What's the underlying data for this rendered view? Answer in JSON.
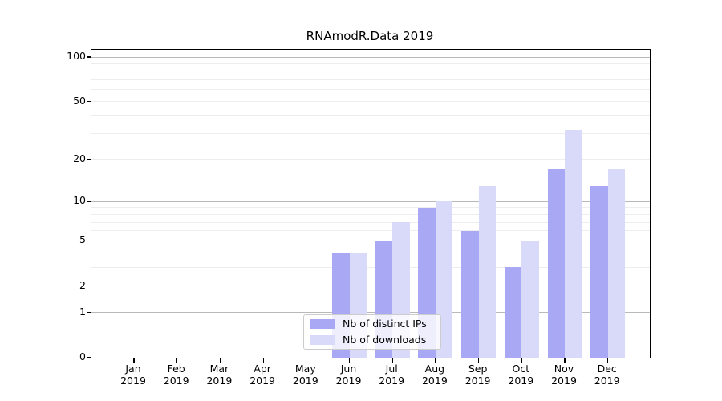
{
  "figure": {
    "title": "RNAmodR.Data 2019"
  },
  "chart_data": {
    "type": "bar",
    "title": "RNAmodR.Data 2019",
    "categories": [
      "Jan",
      "Feb",
      "Mar",
      "Apr",
      "May",
      "Jun",
      "Jul",
      "Aug",
      "Sep",
      "Oct",
      "Nov",
      "Dec"
    ],
    "category_year_label": "2019",
    "series": [
      {
        "name": "Nb of distinct IPs",
        "color": "#a8a8f5",
        "values": [
          0,
          0,
          0,
          0,
          0,
          4,
          5,
          9,
          6,
          3,
          17,
          13
        ]
      },
      {
        "name": "Nb of downloads",
        "color": "#d9d9f9",
        "values": [
          0,
          0,
          0,
          0,
          0,
          4,
          7,
          10,
          13,
          5,
          32,
          17
        ]
      }
    ],
    "xlabel": "",
    "ylabel": "",
    "y_axis": {
      "scale": "log1p",
      "range": [
        0,
        100
      ],
      "tick_labels": [
        0,
        1,
        2,
        5,
        10,
        20,
        50,
        100
      ],
      "major_gridlines": [
        1,
        10,
        100
      ],
      "minor_gridlines": [
        2,
        3,
        4,
        5,
        6,
        7,
        8,
        9,
        20,
        30,
        40,
        50,
        60,
        70,
        80,
        90
      ]
    },
    "grid": true,
    "legend": {
      "position": "inside-bottom-center",
      "entries": [
        "Nb of distinct IPs",
        "Nb of downloads"
      ]
    },
    "colors": {
      "bar_ips": "#a8a8f5",
      "bar_downloads": "#d9d9f9",
      "major_grid": "#b9b9b9",
      "minor_grid": "#ededf0",
      "axis": "#000000",
      "legend_border": "#cccccc",
      "background": "#ffffff"
    }
  }
}
